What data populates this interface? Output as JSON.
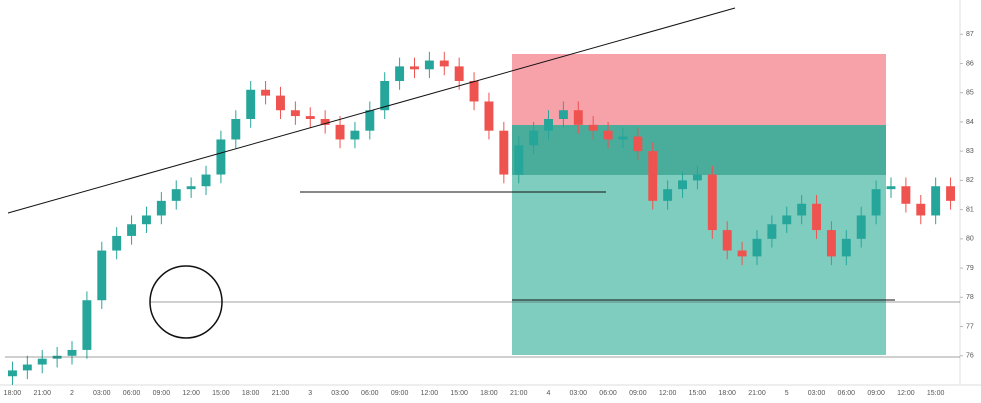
{
  "chart_data": {
    "type": "candlestick",
    "categories": [
      "18:00",
      null,
      "21:00",
      null,
      "2",
      null,
      "03:00",
      null,
      "06:00",
      null,
      "09:00",
      null,
      "12:00",
      null,
      "15:00",
      null,
      "18:00",
      null,
      "21:00",
      null,
      "3",
      null,
      "03:00",
      null,
      "06:00",
      null,
      "09:00",
      null,
      "12:00",
      null,
      "15:00",
      null,
      "18:00",
      null,
      "21:00",
      null,
      "4",
      null,
      "03:00",
      null,
      "06:00",
      null,
      "09:00",
      null,
      "12:00",
      null,
      "15:00",
      null,
      "18:00",
      null,
      "21:00",
      null,
      "5",
      null,
      "03:00",
      null,
      "06:00",
      null,
      "09:00",
      null,
      "12:00",
      null,
      "15:00",
      null
    ],
    "open": [
      75.3,
      75.5,
      75.7,
      75.9,
      76.0,
      76.2,
      77.9,
      79.6,
      80.1,
      80.5,
      80.8,
      81.3,
      81.7,
      81.8,
      82.2,
      83.4,
      84.1,
      85.1,
      84.9,
      84.4,
      84.2,
      84.1,
      83.9,
      83.4,
      83.7,
      84.4,
      85.4,
      85.9,
      85.8,
      86.1,
      85.9,
      85.4,
      84.7,
      83.7,
      82.2,
      83.2,
      83.7,
      84.1,
      84.4,
      83.9,
      83.7,
      83.4,
      83.5,
      83.0,
      81.3,
      81.7,
      82.0,
      82.2,
      80.3,
      79.6,
      79.4,
      80.0,
      80.5,
      80.8,
      81.2,
      80.3,
      79.4,
      80.0,
      80.8,
      81.7,
      81.8,
      81.2,
      80.8,
      81.8
    ],
    "high": [
      75.8,
      76.0,
      76.2,
      76.3,
      76.5,
      78.2,
      79.9,
      80.4,
      80.8,
      81.1,
      81.6,
      82.0,
      82.1,
      82.5,
      83.7,
      84.4,
      85.4,
      85.4,
      85.2,
      84.7,
      84.5,
      84.4,
      84.2,
      84.0,
      84.7,
      85.7,
      86.2,
      86.2,
      86.4,
      86.4,
      86.2,
      85.7,
      85.0,
      84.0,
      83.5,
      84.0,
      84.4,
      84.7,
      84.7,
      84.2,
      84.0,
      83.8,
      83.8,
      83.3,
      82.0,
      82.3,
      82.5,
      82.5,
      80.6,
      79.9,
      80.3,
      80.8,
      81.1,
      81.5,
      81.5,
      80.6,
      80.3,
      81.1,
      82.0,
      82.1,
      82.1,
      81.5,
      82.1,
      82.1
    ],
    "low": [
      75.0,
      75.2,
      75.4,
      75.6,
      75.7,
      75.9,
      77.6,
      79.3,
      79.8,
      80.2,
      80.5,
      81.0,
      81.4,
      81.5,
      81.9,
      83.1,
      83.8,
      84.6,
      84.1,
      83.9,
      83.8,
      83.6,
      83.1,
      83.1,
      83.4,
      84.1,
      85.1,
      85.5,
      85.5,
      85.6,
      85.1,
      84.4,
      83.4,
      81.9,
      81.9,
      82.9,
      83.4,
      83.8,
      83.6,
      83.4,
      83.1,
      83.1,
      82.7,
      81.0,
      81.0,
      81.4,
      81.7,
      80.0,
      79.3,
      79.1,
      79.1,
      79.7,
      80.2,
      80.5,
      80.0,
      79.1,
      79.1,
      79.7,
      80.5,
      81.4,
      80.9,
      80.5,
      80.5,
      81.0
    ],
    "close": [
      75.5,
      75.7,
      75.9,
      76.0,
      76.2,
      77.9,
      79.6,
      80.1,
      80.5,
      80.8,
      81.3,
      81.7,
      81.8,
      82.2,
      83.4,
      84.1,
      85.1,
      84.9,
      84.4,
      84.2,
      84.1,
      83.9,
      83.4,
      83.7,
      84.4,
      85.4,
      85.9,
      85.8,
      86.1,
      85.9,
      85.4,
      84.7,
      83.7,
      82.2,
      83.2,
      83.7,
      84.1,
      84.4,
      83.9,
      83.7,
      83.4,
      83.5,
      83.0,
      81.3,
      81.7,
      82.0,
      82.2,
      80.3,
      79.6,
      79.4,
      80.0,
      80.5,
      80.8,
      81.2,
      80.3,
      79.4,
      80.0,
      80.8,
      81.7,
      81.8,
      81.2,
      80.8,
      81.8,
      81.3
    ],
    "up_color": "#26a69a",
    "down_color": "#ef5350",
    "ylim": [
      75,
      88
    ],
    "yticks": [
      76,
      77,
      78,
      79,
      80,
      81,
      82,
      83,
      84,
      85,
      86,
      87
    ],
    "grid": false
  }
}
